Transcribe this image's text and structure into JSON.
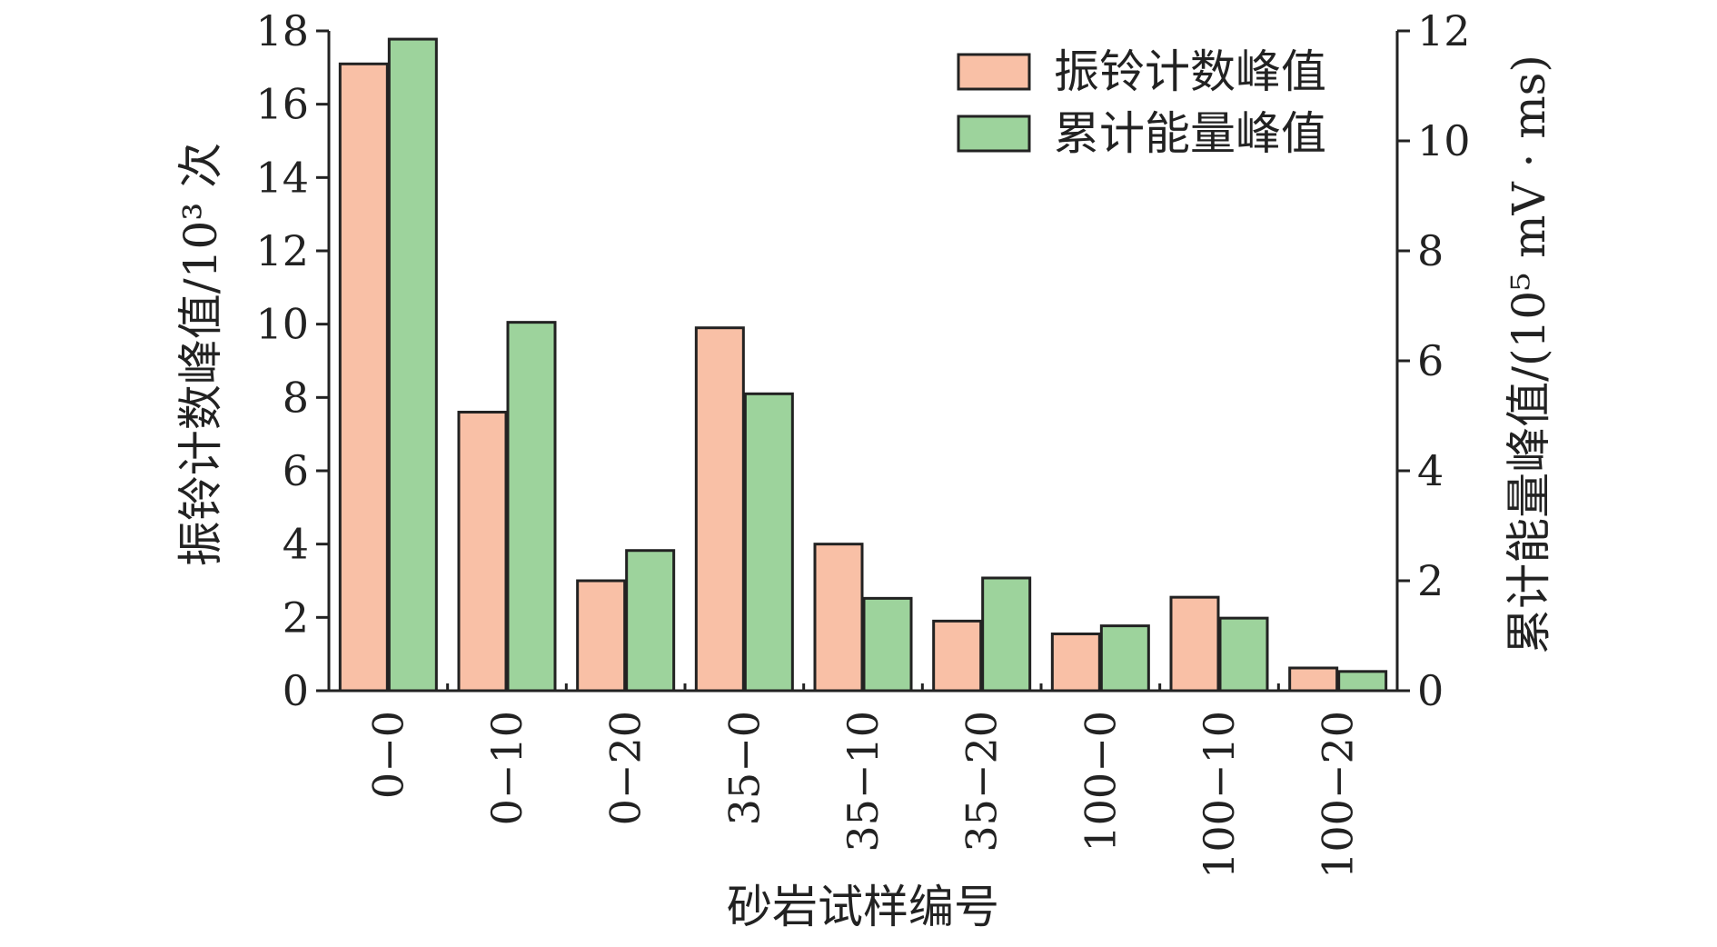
{
  "colors": {
    "series1_fill": "#F9C0A6",
    "series2_fill": "#9DD39C",
    "bar_stroke": "#222222",
    "axis": "#222222"
  },
  "chart_data": {
    "type": "bar",
    "categories": [
      "0−0",
      "0−10",
      "0−20",
      "35−0",
      "35−10",
      "35−20",
      "100−0",
      "100−10",
      "100−20"
    ],
    "series": [
      {
        "name": "振铃计数峰值",
        "axis": "left",
        "values": [
          17.1,
          7.6,
          3.0,
          9.9,
          4.0,
          1.9,
          1.55,
          2.55,
          0.62
        ]
      },
      {
        "name": "累计能量峰值",
        "axis": "right",
        "values": [
          11.85,
          6.7,
          2.55,
          5.4,
          1.68,
          2.05,
          1.18,
          1.32,
          0.35
        ]
      }
    ],
    "xlabel": "砂岩试样编号",
    "ylabel_left": "振铃计数峰值/10³ 次",
    "ylabel_right": "累计能量峰值/(10⁵ mV · ms)",
    "ylim_left": [
      0,
      18
    ],
    "ylim_right": [
      0,
      12
    ],
    "yticks_left": [
      "0",
      "2",
      "4",
      "6",
      "8",
      "10",
      "12",
      "14",
      "16",
      "18"
    ],
    "yticks_right": [
      "0",
      "2",
      "4",
      "6",
      "8",
      "10",
      "12"
    ],
    "grid": false,
    "legend_position": "top-right"
  }
}
